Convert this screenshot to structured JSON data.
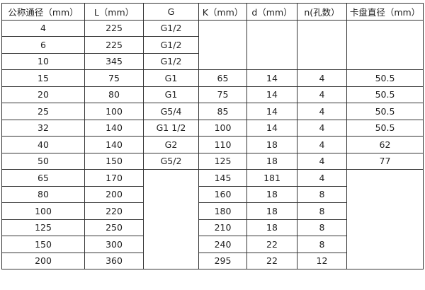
{
  "headers": [
    "公称通径（mm）",
    "L（mm）",
    "G",
    "K（mm）",
    "d（mm）",
    "n(孔数）",
    "卡盘直径（mm）"
  ],
  "rows": [
    [
      "4",
      "225",
      "G1/2",
      "",
      "",
      "",
      ""
    ],
    [
      "6",
      "225",
      "G1/2",
      "",
      "",
      "",
      ""
    ],
    [
      "10",
      "345",
      "G1/2",
      "",
      "",
      "",
      ""
    ],
    [
      "15",
      "75",
      "G1",
      "65",
      "14",
      "4",
      "50.5"
    ],
    [
      "20",
      "80",
      "G1",
      "75",
      "14",
      "4",
      "50.5"
    ],
    [
      "25",
      "100",
      "G5/4",
      "85",
      "14",
      "4",
      "50.5"
    ],
    [
      "32",
      "140",
      "G1  1/2",
      "100",
      "14",
      "4",
      "50.5"
    ],
    [
      "40",
      "140",
      "G2",
      "110",
      "18",
      "4",
      "62"
    ],
    [
      "50",
      "150",
      "G5/2",
      "125",
      "18",
      "4",
      "77"
    ],
    [
      "65",
      "170",
      "",
      "145",
      "181",
      "4",
      ""
    ],
    [
      "80",
      "200",
      "",
      "160",
      "18",
      "8",
      ""
    ],
    [
      "100",
      "220",
      "",
      "180",
      "18",
      "8",
      ""
    ],
    [
      "125",
      "250",
      "",
      "210",
      "18",
      "8",
      ""
    ],
    [
      "150",
      "300",
      "",
      "240",
      "22",
      "8",
      ""
    ],
    [
      "200",
      "360",
      "",
      "295",
      "22",
      "12",
      ""
    ]
  ]
}
